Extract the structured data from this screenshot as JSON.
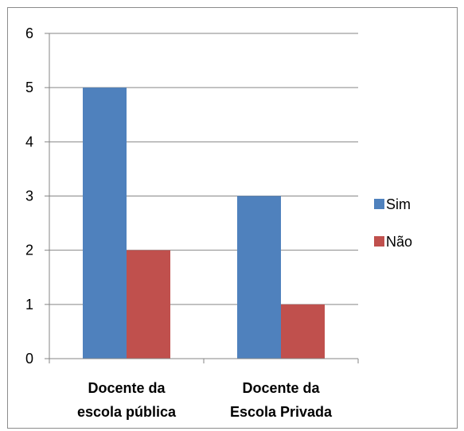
{
  "chart_data": {
    "type": "bar",
    "categories": [
      [
        "Docente da",
        "escola pública"
      ],
      [
        "Docente da",
        "Escola Privada"
      ]
    ],
    "series": [
      {
        "name": "Sim",
        "color": "#4f81bd",
        "values": [
          5,
          3
        ]
      },
      {
        "name": "Não",
        "color": "#c0504d",
        "values": [
          2,
          1
        ]
      }
    ],
    "ylim": [
      0,
      6
    ],
    "yticks": [
      0,
      1,
      2,
      3,
      4,
      5,
      6
    ],
    "grid": true,
    "legend_position": "right"
  }
}
